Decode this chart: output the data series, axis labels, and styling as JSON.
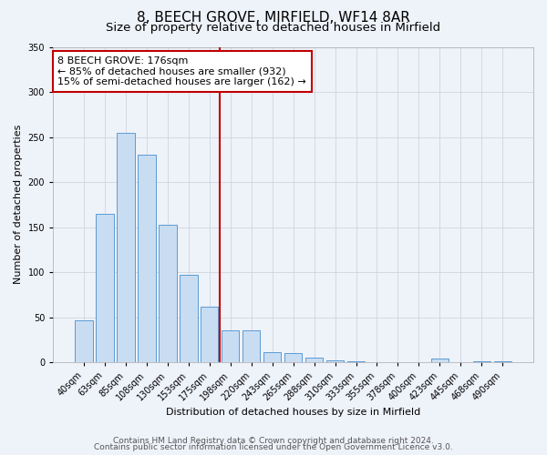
{
  "title": "8, BEECH GROVE, MIRFIELD, WF14 8AR",
  "subtitle": "Size of property relative to detached houses in Mirfield",
  "xlabel": "Distribution of detached houses by size in Mirfield",
  "ylabel": "Number of detached properties",
  "bar_labels": [
    "40sqm",
    "63sqm",
    "85sqm",
    "108sqm",
    "130sqm",
    "153sqm",
    "175sqm",
    "198sqm",
    "220sqm",
    "243sqm",
    "265sqm",
    "288sqm",
    "310sqm",
    "333sqm",
    "355sqm",
    "378sqm",
    "400sqm",
    "423sqm",
    "445sqm",
    "468sqm",
    "490sqm"
  ],
  "bar_values": [
    46,
    165,
    255,
    230,
    153,
    97,
    62,
    35,
    35,
    11,
    10,
    5,
    2,
    1,
    0,
    0,
    0,
    4,
    0,
    1,
    1
  ],
  "bar_color": "#c9ddf2",
  "bar_edge_color": "#5b9bd5",
  "vline_color": "#c00000",
  "annotation_text": "8 BEECH GROVE: 176sqm\n← 85% of detached houses are smaller (932)\n15% of semi-detached houses are larger (162) →",
  "annotation_box_facecolor": "#ffffff",
  "annotation_box_edgecolor": "#c00000",
  "ylim": [
    0,
    350
  ],
  "yticks": [
    0,
    50,
    100,
    150,
    200,
    250,
    300,
    350
  ],
  "footer_line1": "Contains HM Land Registry data © Crown copyright and database right 2024.",
  "footer_line2": "Contains public sector information licensed under the Open Government Licence v3.0.",
  "background_color": "#eef2f9",
  "plot_background_color": "#eef2f9",
  "title_fontsize": 11,
  "subtitle_fontsize": 9.5,
  "axis_label_fontsize": 8,
  "tick_fontsize": 7,
  "footer_fontsize": 6.5,
  "annotation_fontsize": 8
}
